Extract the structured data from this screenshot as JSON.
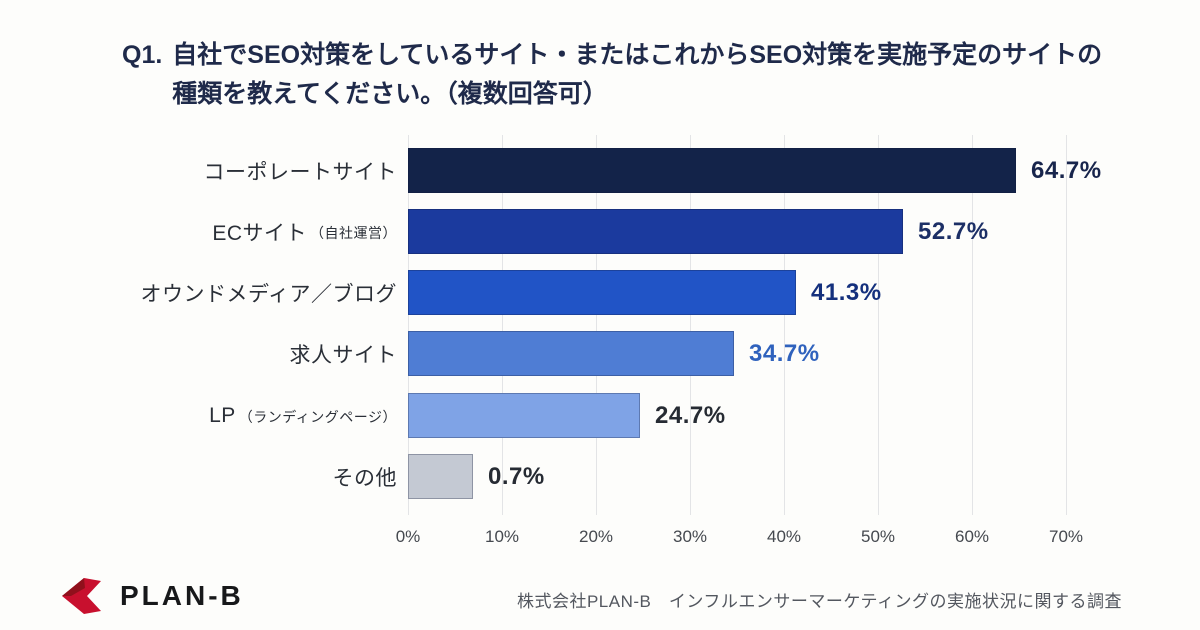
{
  "title": {
    "q": "Q1.",
    "line1": "自社でSEO対策をしているサイト・またはこれからSEO対策を実施予定のサイトの",
    "line2": "種類を教えてください。（複数回答可）"
  },
  "chart_data": {
    "type": "bar",
    "orientation": "horizontal",
    "categories": [
      {
        "main": "コーポレートサイト",
        "sub": ""
      },
      {
        "main": "ECサイト",
        "sub": "（自社運営）"
      },
      {
        "main": "オウンドメディア／ブログ",
        "sub": ""
      },
      {
        "main": "求人サイト",
        "sub": ""
      },
      {
        "main": "LP",
        "sub": "（ランディングページ）"
      },
      {
        "main": "その他",
        "sub": ""
      }
    ],
    "values": [
      64.7,
      52.7,
      41.3,
      34.7,
      24.7,
      0.7
    ],
    "value_labels": [
      "64.7%",
      "52.7%",
      "41.3%",
      "34.7%",
      "24.7%",
      "0.7%"
    ],
    "display_values": [
      64.7,
      52.7,
      41.3,
      34.7,
      24.7,
      6.9
    ],
    "bar_colors": [
      "#132349",
      "#1b3a9e",
      "#2154c6",
      "#4f7dd4",
      "#7fa3e6",
      "#c4c9d3"
    ],
    "value_label_colors": [
      "#18254c",
      "#1c2f66",
      "#14307d",
      "#2f62bd",
      "#262b33",
      "#262b33"
    ],
    "xlim": [
      0,
      70
    ],
    "x_ticks": [
      "0%",
      "10%",
      "20%",
      "30%",
      "40%",
      "50%",
      "60%",
      "70%"
    ],
    "xlabel": "",
    "ylabel": "",
    "grid": "vertical",
    "gridline_color": "#e3e4e6",
    "legend": "none"
  },
  "footer": {
    "logo_icon": "plan-b-chevron-mark",
    "logo_red": "#c8102e",
    "logo_dark_red": "#90101c",
    "logo_text": "PLAN-B",
    "credit": "株式会社PLAN-B　インフルエンサーマーケティングの実施状況に関する調査"
  }
}
